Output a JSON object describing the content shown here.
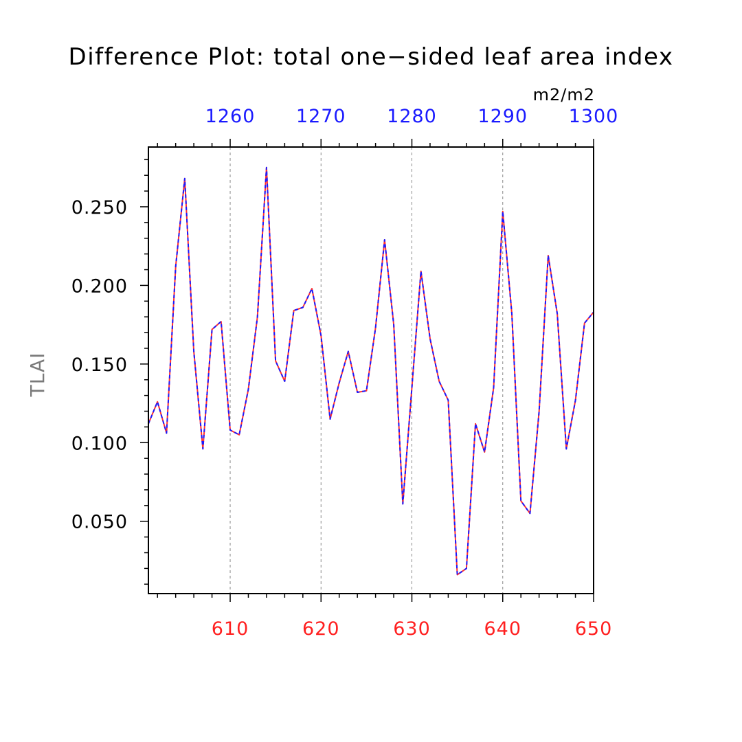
{
  "chart_data": {
    "type": "line",
    "title": "Difference Plot: total one−sided leaf area index",
    "units": "m2/m2",
    "ylabel": "TLAI",
    "xlim": [
      601,
      650
    ],
    "ylim": [
      0.004,
      0.288
    ],
    "top_axis_offset": 650,
    "bottom_ticks": [
      "610",
      "620",
      "630",
      "640",
      "650"
    ],
    "bottom_tick_values": [
      610,
      620,
      630,
      640,
      650
    ],
    "top_ticks": [
      "1260",
      "1270",
      "1280",
      "1290",
      "1300"
    ],
    "y_ticks": [
      "0.050",
      "0.100",
      "0.150",
      "0.200",
      "0.250"
    ],
    "y_tick_values": [
      0.05,
      0.1,
      0.15,
      0.2,
      0.25
    ],
    "grid": "vertical dashed at major ticks",
    "colors": {
      "series_a": "#ff3030",
      "series_b": "#1a1aff",
      "bottom_axis_text": "#ff2020",
      "top_axis_text": "#1a1aff",
      "grid": "#888888"
    },
    "series": [
      {
        "name": "red",
        "x": [
          601,
          602,
          603,
          604,
          605,
          606,
          607,
          608,
          609,
          610,
          611,
          612,
          613,
          614,
          615,
          616,
          617,
          618,
          619,
          620,
          621,
          622,
          623,
          624,
          625,
          626,
          627,
          628,
          629,
          630,
          631,
          632,
          633,
          634,
          635,
          636,
          637,
          638,
          639,
          640,
          641,
          642,
          643,
          644,
          645,
          646,
          647,
          648,
          649,
          650
        ],
        "values": [
          0.112,
          0.126,
          0.106,
          0.212,
          0.268,
          0.158,
          0.096,
          0.172,
          0.177,
          0.108,
          0.105,
          0.134,
          0.18,
          0.275,
          0.152,
          0.139,
          0.184,
          0.186,
          0.198,
          0.168,
          0.115,
          0.138,
          0.158,
          0.132,
          0.133,
          0.173,
          0.229,
          0.175,
          0.061,
          0.135,
          0.209,
          0.166,
          0.139,
          0.127,
          0.016,
          0.02,
          0.112,
          0.094,
          0.135,
          0.247,
          0.182,
          0.063,
          0.055,
          0.12,
          0.219,
          0.182,
          0.096,
          0.127,
          0.176,
          0.183
        ]
      },
      {
        "name": "blue",
        "x": [
          601,
          602,
          603,
          604,
          605,
          606,
          607,
          608,
          609,
          610,
          611,
          612,
          613,
          614,
          615,
          616,
          617,
          618,
          619,
          620,
          621,
          622,
          623,
          624,
          625,
          626,
          627,
          628,
          629,
          630,
          631,
          632,
          633,
          634,
          635,
          636,
          637,
          638,
          639,
          640,
          641,
          642,
          643,
          644,
          645,
          646,
          647,
          648,
          649,
          650
        ],
        "values": [
          0.112,
          0.126,
          0.106,
          0.212,
          0.268,
          0.158,
          0.096,
          0.172,
          0.177,
          0.108,
          0.105,
          0.134,
          0.18,
          0.275,
          0.152,
          0.139,
          0.184,
          0.186,
          0.198,
          0.168,
          0.115,
          0.138,
          0.158,
          0.132,
          0.133,
          0.173,
          0.229,
          0.175,
          0.061,
          0.135,
          0.209,
          0.166,
          0.139,
          0.127,
          0.016,
          0.02,
          0.112,
          0.094,
          0.135,
          0.247,
          0.182,
          0.063,
          0.055,
          0.12,
          0.219,
          0.182,
          0.096,
          0.127,
          0.176,
          0.183
        ]
      }
    ]
  }
}
